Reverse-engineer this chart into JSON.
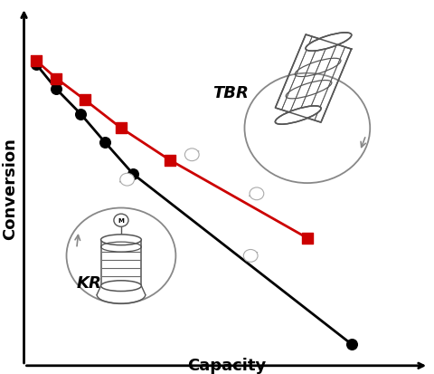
{
  "black_x": [
    0.07,
    0.12,
    0.18,
    0.24,
    0.31,
    0.85
  ],
  "black_y": [
    0.87,
    0.8,
    0.73,
    0.65,
    0.56,
    0.08
  ],
  "red_x": [
    0.07,
    0.12,
    0.19,
    0.28,
    0.4,
    0.74
  ],
  "red_y": [
    0.88,
    0.83,
    0.77,
    0.69,
    0.6,
    0.38
  ],
  "black_color": "#000000",
  "red_color": "#cc0000",
  "background_color": "#ffffff",
  "xlabel": "Capacity",
  "ylabel": "Conversion",
  "label_tbr": "TBR",
  "label_kr": "KR",
  "figsize": [
    4.8,
    4.14
  ],
  "dpi": 100
}
